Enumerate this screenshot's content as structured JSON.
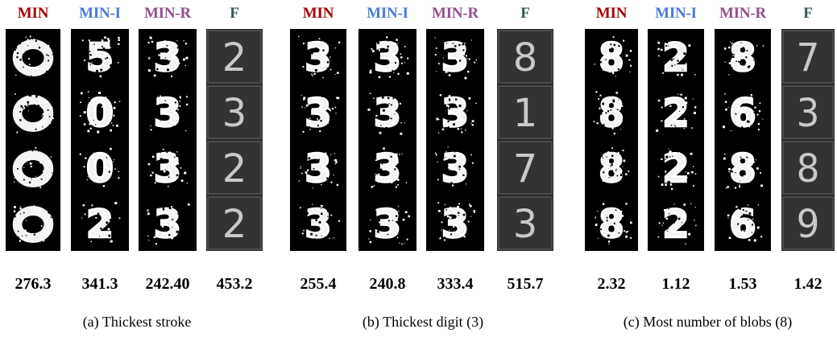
{
  "colors": {
    "MIN": "#a40000",
    "MIN-I": "#4a7bd9",
    "MIN-R": "#94508a",
    "F": "#2f5a55"
  },
  "panels": [
    {
      "caption": "(a) Thickest stroke",
      "columns": [
        {
          "label": "MIN",
          "value": "276.3",
          "digits": [
            "blob",
            "blob",
            "blob",
            "blob"
          ]
        },
        {
          "label": "MIN-I",
          "value": "341.3",
          "digits": [
            "5",
            "0",
            "0",
            "2"
          ]
        },
        {
          "label": "MIN-R",
          "value": "242.40",
          "digits": [
            "3",
            "3",
            "3",
            "3"
          ]
        },
        {
          "label": "F",
          "value": "453.2",
          "digits": [
            "2",
            "3",
            "2",
            "2"
          ]
        }
      ]
    },
    {
      "caption": "(b) Thickest digit (3)",
      "columns": [
        {
          "label": "MIN",
          "value": "255.4",
          "digits": [
            "3",
            "3",
            "3",
            "3"
          ]
        },
        {
          "label": "MIN-I",
          "value": "240.8",
          "digits": [
            "3",
            "3",
            "3",
            "3"
          ]
        },
        {
          "label": "MIN-R",
          "value": "333.4",
          "digits": [
            "3",
            "3",
            "3",
            "3"
          ]
        },
        {
          "label": "F",
          "value": "515.7",
          "digits": [
            "8",
            "1",
            "7",
            "3"
          ]
        }
      ]
    },
    {
      "caption": "(c) Most number of blobs (8)",
      "columns": [
        {
          "label": "MIN",
          "value": "2.32",
          "digits": [
            "8",
            "8",
            "8",
            "8"
          ]
        },
        {
          "label": "MIN-I",
          "value": "1.12",
          "digits": [
            "2",
            "2",
            "2",
            "2"
          ]
        },
        {
          "label": "MIN-R",
          "value": "1.53",
          "digits": [
            "8",
            "6",
            "8",
            "6"
          ]
        },
        {
          "label": "F",
          "value": "1.42",
          "digits": [
            "7",
            "3",
            "8",
            "9"
          ]
        }
      ]
    }
  ]
}
